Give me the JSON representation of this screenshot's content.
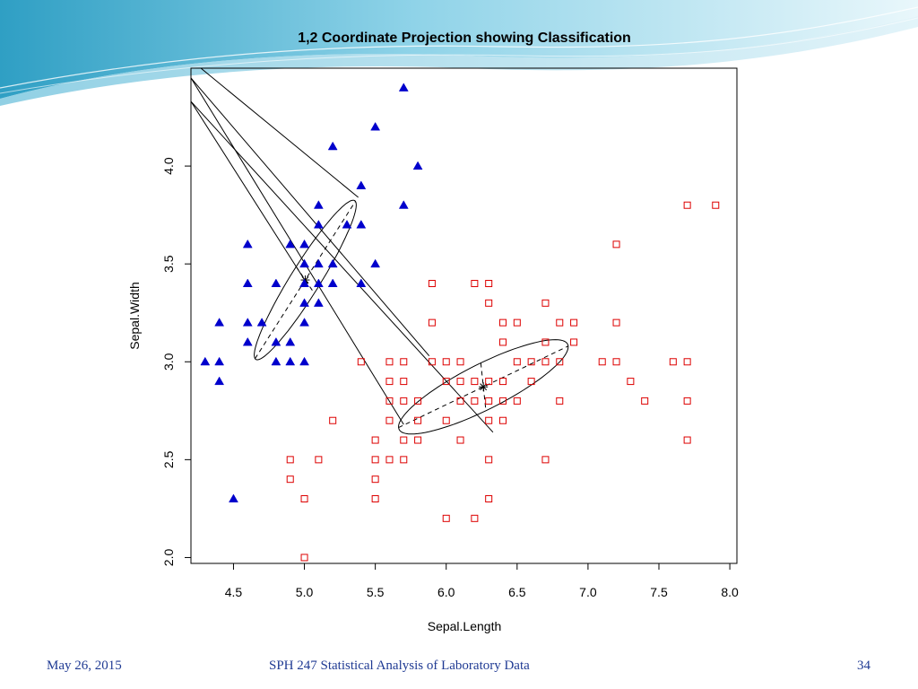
{
  "footer": {
    "date": "May 26, 2015",
    "title": "SPH 247 Statistical Analysis of Laboratory Data",
    "page": "34"
  },
  "theme": {
    "footer_color": "#1f3a93",
    "header_wave_colors": [
      "#3aa8c8",
      "#bfe6f1"
    ],
    "class1_color": "#0000cc",
    "class2_color": "#dd0000"
  },
  "chart_data": {
    "type": "scatter",
    "title": "1,2 Coordinate Projection showing Classification",
    "xlabel": "Sepal.Length",
    "ylabel": "Sepal.Width",
    "xlim": [
      4.2,
      8.05
    ],
    "ylim": [
      1.97,
      4.5
    ],
    "xticks": [
      4.5,
      5.0,
      5.5,
      6.0,
      6.5,
      7.0,
      7.5,
      8.0
    ],
    "xtick_labels": [
      "4.5",
      "5.0",
      "5.5",
      "6.0",
      "6.5",
      "7.0",
      "7.5",
      "8.0"
    ],
    "yticks": [
      2.0,
      2.5,
      3.0,
      3.5,
      4.0
    ],
    "ytick_labels": [
      "2.0",
      "2.5",
      "3.0",
      "3.5",
      "4.0"
    ],
    "grid": false,
    "series": [
      {
        "marker": "filled-triangle",
        "color": "#0000cc",
        "points": [
          [
            5.7,
            4.4
          ],
          [
            5.5,
            4.2
          ],
          [
            5.2,
            4.1
          ],
          [
            5.8,
            4.0
          ],
          [
            5.4,
            3.9
          ],
          [
            5.1,
            3.8
          ],
          [
            5.7,
            3.8
          ],
          [
            5.1,
            3.7
          ],
          [
            5.3,
            3.7
          ],
          [
            5.4,
            3.7
          ],
          [
            4.6,
            3.6
          ],
          [
            4.9,
            3.6
          ],
          [
            5.0,
            3.6
          ],
          [
            5.0,
            3.5
          ],
          [
            5.1,
            3.5
          ],
          [
            5.2,
            3.5
          ],
          [
            5.5,
            3.5
          ],
          [
            4.6,
            3.4
          ],
          [
            4.8,
            3.4
          ],
          [
            5.0,
            3.4
          ],
          [
            5.1,
            3.4
          ],
          [
            5.2,
            3.4
          ],
          [
            5.4,
            3.4
          ],
          [
            5.0,
            3.3
          ],
          [
            5.1,
            3.3
          ],
          [
            4.4,
            3.2
          ],
          [
            4.6,
            3.2
          ],
          [
            4.7,
            3.2
          ],
          [
            5.0,
            3.2
          ],
          [
            4.6,
            3.1
          ],
          [
            4.8,
            3.1
          ],
          [
            4.9,
            3.1
          ],
          [
            4.3,
            3.0
          ],
          [
            4.4,
            3.0
          ],
          [
            4.8,
            3.0
          ],
          [
            4.9,
            3.0
          ],
          [
            5.0,
            3.0
          ],
          [
            4.4,
            2.9
          ],
          [
            4.5,
            2.3
          ]
        ]
      },
      {
        "marker": "open-square",
        "color": "#dd0000",
        "points": [
          [
            7.7,
            3.8
          ],
          [
            7.9,
            3.8
          ],
          [
            7.2,
            3.6
          ],
          [
            5.9,
            3.4
          ],
          [
            6.2,
            3.4
          ],
          [
            6.3,
            3.4
          ],
          [
            6.3,
            3.3
          ],
          [
            6.7,
            3.3
          ],
          [
            5.9,
            3.2
          ],
          [
            6.4,
            3.2
          ],
          [
            6.5,
            3.2
          ],
          [
            6.8,
            3.2
          ],
          [
            6.9,
            3.2
          ],
          [
            7.2,
            3.2
          ],
          [
            6.4,
            3.1
          ],
          [
            6.7,
            3.1
          ],
          [
            6.9,
            3.1
          ],
          [
            5.4,
            3.0
          ],
          [
            5.6,
            3.0
          ],
          [
            5.7,
            3.0
          ],
          [
            5.9,
            3.0
          ],
          [
            6.0,
            3.0
          ],
          [
            6.1,
            3.0
          ],
          [
            6.5,
            3.0
          ],
          [
            6.6,
            3.0
          ],
          [
            6.7,
            3.0
          ],
          [
            6.8,
            3.0
          ],
          [
            7.1,
            3.0
          ],
          [
            7.2,
            3.0
          ],
          [
            7.6,
            3.0
          ],
          [
            7.7,
            3.0
          ],
          [
            5.6,
            2.9
          ],
          [
            5.7,
            2.9
          ],
          [
            6.0,
            2.9
          ],
          [
            6.1,
            2.9
          ],
          [
            6.2,
            2.9
          ],
          [
            6.3,
            2.9
          ],
          [
            6.4,
            2.9
          ],
          [
            6.6,
            2.9
          ],
          [
            7.3,
            2.9
          ],
          [
            5.6,
            2.8
          ],
          [
            5.7,
            2.8
          ],
          [
            5.8,
            2.8
          ],
          [
            6.1,
            2.8
          ],
          [
            6.2,
            2.8
          ],
          [
            6.3,
            2.8
          ],
          [
            6.4,
            2.8
          ],
          [
            6.5,
            2.8
          ],
          [
            6.8,
            2.8
          ],
          [
            7.4,
            2.8
          ],
          [
            7.7,
            2.8
          ],
          [
            5.2,
            2.7
          ],
          [
            5.6,
            2.7
          ],
          [
            5.8,
            2.7
          ],
          [
            6.0,
            2.7
          ],
          [
            6.3,
            2.7
          ],
          [
            6.4,
            2.7
          ],
          [
            5.5,
            2.6
          ],
          [
            5.7,
            2.6
          ],
          [
            5.8,
            2.6
          ],
          [
            6.1,
            2.6
          ],
          [
            7.7,
            2.6
          ],
          [
            4.9,
            2.5
          ],
          [
            5.1,
            2.5
          ],
          [
            5.5,
            2.5
          ],
          [
            5.6,
            2.5
          ],
          [
            5.7,
            2.5
          ],
          [
            6.3,
            2.5
          ],
          [
            6.7,
            2.5
          ],
          [
            4.9,
            2.4
          ],
          [
            5.5,
            2.4
          ],
          [
            5.0,
            2.3
          ],
          [
            5.5,
            2.3
          ],
          [
            6.3,
            2.3
          ],
          [
            6.0,
            2.2
          ],
          [
            6.2,
            2.2
          ],
          [
            5.0,
            2.0
          ]
        ]
      }
    ],
    "centers": [
      [
        5.006,
        3.418
      ],
      [
        6.262,
        2.872
      ]
    ]
  }
}
